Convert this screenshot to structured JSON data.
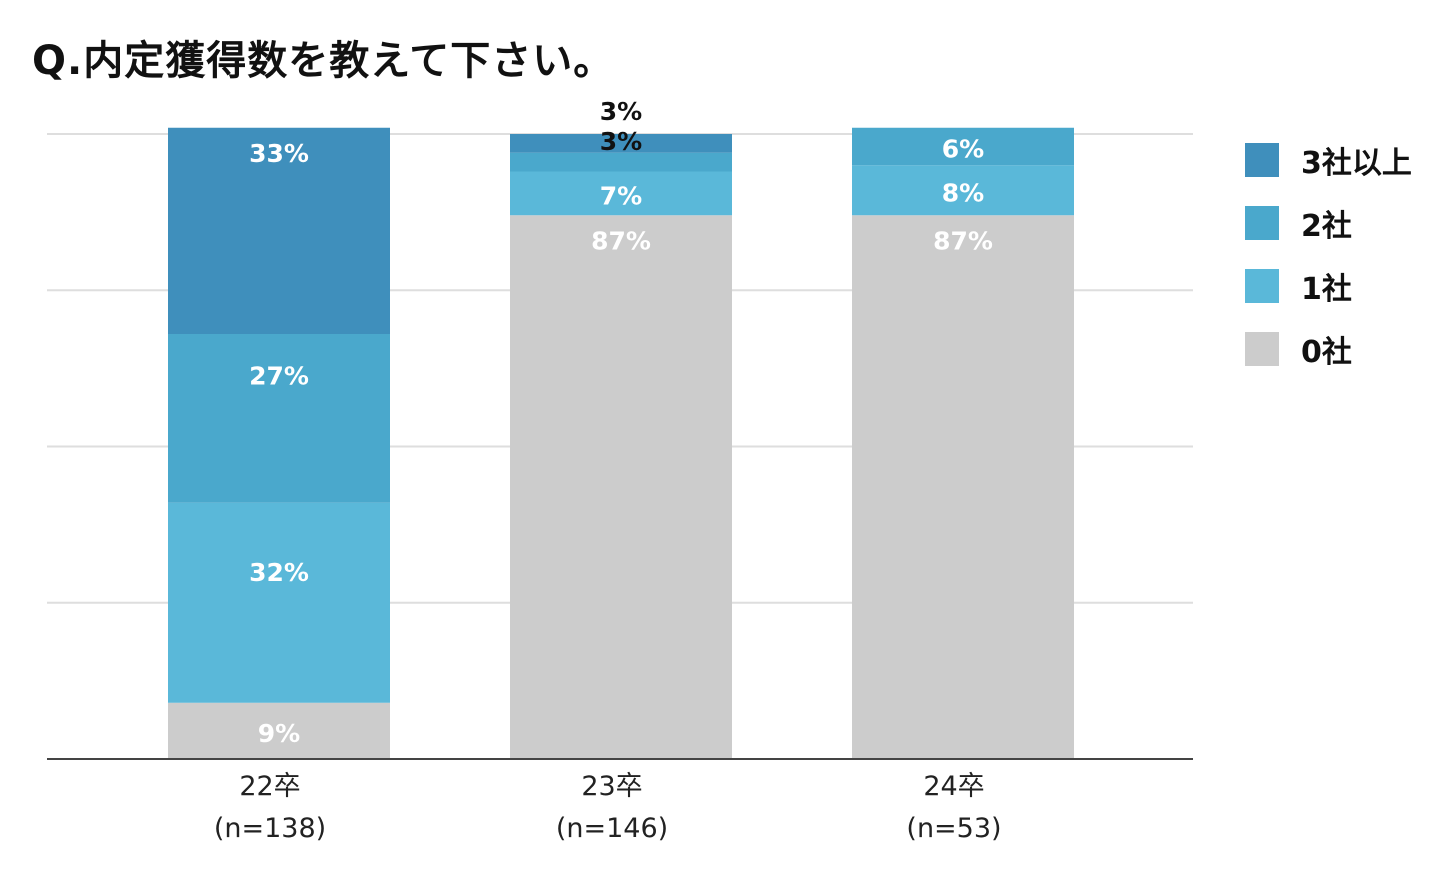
{
  "title": "Q.内定獲得数を教えて下さい。",
  "chart_data": {
    "type": "bar",
    "stacked": true,
    "percent": true,
    "title": "Q.内定獲得数を教えて下さい。",
    "categories": [
      "22卒",
      "23卒",
      "24卒"
    ],
    "sample_sizes": [
      "(n=138)",
      "(n=146)",
      "(n=53)"
    ],
    "ylim": [
      0,
      100
    ],
    "grid": true,
    "legend_position": "right",
    "series": [
      {
        "name": "0社",
        "values": [
          9,
          87,
          87
        ],
        "labels": [
          "9%",
          "87%",
          "87%"
        ],
        "color": "#cccccc"
      },
      {
        "name": "1社",
        "values": [
          32,
          7,
          8
        ],
        "labels": [
          "32%",
          "7%",
          "8%"
        ],
        "color": "#5ab8d9"
      },
      {
        "name": "2社",
        "values": [
          27,
          3,
          6
        ],
        "labels": [
          "27%",
          "3%",
          "6%"
        ],
        "color": "#4aa8cc"
      },
      {
        "name": "3社以上",
        "values": [
          33,
          3,
          0
        ],
        "labels": [
          "33%",
          "3%",
          ""
        ],
        "color": "#3f8fbc"
      }
    ],
    "legend_order": [
      "3社以上",
      "2社",
      "1社",
      "0社"
    ]
  }
}
